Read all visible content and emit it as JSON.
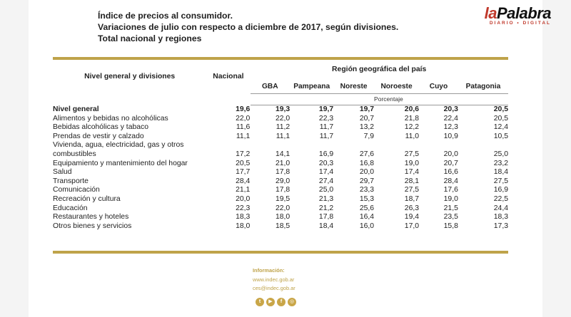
{
  "brand": {
    "logo_prefix": "la",
    "logo_name": "Palabra",
    "logo_tagline": "DIARIO • DIGITAL"
  },
  "title": {
    "line1": "Índice de precios al consumidor.",
    "line2": "Variaciones de julio con respecto a diciembre de 2017, según divisiones.",
    "line3": "Total nacional y regiones"
  },
  "table": {
    "col_label": "Nivel general y divisiones",
    "col_national": "Nacional",
    "region_group": "Región geográfica del país",
    "regions": [
      "GBA",
      "Pampeana",
      "Noreste",
      "Noroeste",
      "Cuyo",
      "Patagonia"
    ],
    "unit": "Porcentaje",
    "general": {
      "label": "Nivel general",
      "values": [
        "19,6",
        "19,3",
        "19,7",
        "19,7",
        "20,6",
        "20,3",
        "20,5"
      ]
    },
    "rows": [
      {
        "label": "Alimentos y bebidas no alcohólicas",
        "values": [
          "22,0",
          "22,0",
          "22,3",
          "20,7",
          "21,8",
          "22,4",
          "20,5"
        ]
      },
      {
        "label": "Bebidas alcohólicas y tabaco",
        "values": [
          "11,6",
          "11,2",
          "11,7",
          "13,2",
          "12,2",
          "12,3",
          "12,4"
        ]
      },
      {
        "label": "Prendas de vestir y calzado",
        "values": [
          "11,1",
          "11,1",
          "11,7",
          "7,9",
          "11,0",
          "10,9",
          "10,5"
        ]
      },
      {
        "label": "Vivienda, agua, electricidad, gas y otros",
        "label2": "combustibles",
        "values": [
          "17,2",
          "14,1",
          "16,9",
          "27,6",
          "27,5",
          "20,0",
          "25,0"
        ]
      },
      {
        "label": "Equipamiento y mantenimiento del hogar",
        "values": [
          "20,5",
          "21,0",
          "20,3",
          "16,8",
          "19,0",
          "20,7",
          "23,2"
        ]
      },
      {
        "label": "Salud",
        "values": [
          "17,7",
          "17,8",
          "17,4",
          "20,0",
          "17,4",
          "16,6",
          "18,4"
        ]
      },
      {
        "label": "Transporte",
        "values": [
          "28,4",
          "29,0",
          "27,4",
          "29,7",
          "28,1",
          "28,4",
          "27,5"
        ]
      },
      {
        "label": "Comunicación",
        "values": [
          "21,1",
          "17,8",
          "25,0",
          "23,3",
          "27,5",
          "17,6",
          "16,9"
        ]
      },
      {
        "label": "Recreación y cultura",
        "values": [
          "20,0",
          "19,5",
          "21,3",
          "15,3",
          "18,7",
          "19,0",
          "22,5"
        ]
      },
      {
        "label": "Educación",
        "values": [
          "22,3",
          "22,0",
          "21,2",
          "25,6",
          "26,3",
          "21,5",
          "24,4"
        ]
      },
      {
        "label": "Restaurantes y hoteles",
        "values": [
          "18,3",
          "18,0",
          "17,8",
          "16,4",
          "19,4",
          "23,5",
          "18,3"
        ]
      },
      {
        "label": "Otros bienes y servicios",
        "values": [
          "18,0",
          "18,5",
          "18,4",
          "16,0",
          "17,0",
          "15,8",
          "17,3"
        ]
      }
    ]
  },
  "footer": {
    "info_title": "Información:",
    "website": "www.indec.gob.ar",
    "email": "ces@indec.gob.ar",
    "icons": [
      "twitter-icon",
      "youtube-icon",
      "facebook-icon",
      "instagram-icon"
    ],
    "icon_glyphs": [
      "t",
      "▶",
      "f",
      "◎"
    ],
    "accent": "#bfa34a"
  }
}
